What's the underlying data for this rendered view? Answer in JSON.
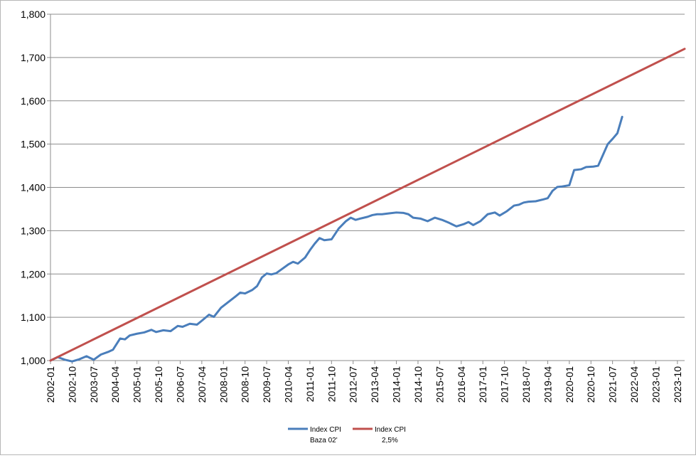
{
  "chart_data": {
    "type": "line",
    "title": "",
    "xlabel": "",
    "ylabel": "",
    "ylim": [
      1000,
      1800
    ],
    "y_ticks": [
      "1,000",
      "1,100",
      "1,200",
      "1,300",
      "1,400",
      "1,500",
      "1,600",
      "1,700",
      "1,800"
    ],
    "x_range": [
      "2002-01",
      "2024-01"
    ],
    "x_ticks": [
      "2002-01",
      "2002-10",
      "2003-07",
      "2004-04",
      "2005-01",
      "2005-10",
      "2006-07",
      "2007-04",
      "2008-01",
      "2008-10",
      "2009-07",
      "2010-04",
      "2011-01",
      "2011-10",
      "2012-07",
      "2013-04",
      "2014-01",
      "2014-10",
      "2015-07",
      "2016-04",
      "2017-01",
      "2017-10",
      "2018-07",
      "2019-04",
      "2020-01",
      "2020-10",
      "2021-07",
      "2022-04",
      "2023-01",
      "2023-10"
    ],
    "grid": "horizontal",
    "legend_position": "bottom",
    "series": [
      {
        "name": "Index CPI Baza 02'",
        "color": "#4a7ebb",
        "points": [
          [
            "2002-01",
            1000
          ],
          [
            "2002-04",
            1008
          ],
          [
            "2002-07",
            1002
          ],
          [
            "2002-10",
            998
          ],
          [
            "2003-01",
            1003
          ],
          [
            "2003-04",
            1010
          ],
          [
            "2003-07",
            1002
          ],
          [
            "2003-10",
            1014
          ],
          [
            "2004-01",
            1020
          ],
          [
            "2004-03",
            1025
          ],
          [
            "2004-06",
            1051
          ],
          [
            "2004-08",
            1049
          ],
          [
            "2004-10",
            1058
          ],
          [
            "2005-01",
            1062
          ],
          [
            "2005-04",
            1065
          ],
          [
            "2005-07",
            1071
          ],
          [
            "2005-09",
            1066
          ],
          [
            "2005-12",
            1070
          ],
          [
            "2006-03",
            1068
          ],
          [
            "2006-06",
            1080
          ],
          [
            "2006-08",
            1078
          ],
          [
            "2006-11",
            1085
          ],
          [
            "2007-02",
            1083
          ],
          [
            "2007-04",
            1092
          ],
          [
            "2007-07",
            1106
          ],
          [
            "2007-09",
            1101
          ],
          [
            "2007-12",
            1122
          ],
          [
            "2008-03",
            1135
          ],
          [
            "2008-06",
            1148
          ],
          [
            "2008-08",
            1157
          ],
          [
            "2008-10",
            1155
          ],
          [
            "2009-01",
            1163
          ],
          [
            "2009-03",
            1172
          ],
          [
            "2009-05",
            1192
          ],
          [
            "2009-07",
            1201
          ],
          [
            "2009-09",
            1199
          ],
          [
            "2009-11",
            1202
          ],
          [
            "2010-01",
            1210
          ],
          [
            "2010-04",
            1222
          ],
          [
            "2010-06",
            1228
          ],
          [
            "2010-08",
            1224
          ],
          [
            "2010-11",
            1238
          ],
          [
            "2011-01",
            1255
          ],
          [
            "2011-03",
            1270
          ],
          [
            "2011-05",
            1283
          ],
          [
            "2011-07",
            1278
          ],
          [
            "2011-10",
            1280
          ],
          [
            "2012-01",
            1305
          ],
          [
            "2012-04",
            1322
          ],
          [
            "2012-06",
            1330
          ],
          [
            "2012-08",
            1325
          ],
          [
            "2012-10",
            1328
          ],
          [
            "2013-01",
            1332
          ],
          [
            "2013-03",
            1336
          ],
          [
            "2013-05",
            1338
          ],
          [
            "2013-07",
            1338
          ],
          [
            "2013-10",
            1340
          ],
          [
            "2014-01",
            1342
          ],
          [
            "2014-04",
            1341
          ],
          [
            "2014-06",
            1338
          ],
          [
            "2014-08",
            1330
          ],
          [
            "2014-11",
            1328
          ],
          [
            "2015-02",
            1322
          ],
          [
            "2015-05",
            1330
          ],
          [
            "2015-08",
            1325
          ],
          [
            "2015-11",
            1318
          ],
          [
            "2016-02",
            1310
          ],
          [
            "2016-05",
            1315
          ],
          [
            "2016-07",
            1320
          ],
          [
            "2016-09",
            1313
          ],
          [
            "2016-12",
            1322
          ],
          [
            "2017-03",
            1338
          ],
          [
            "2017-06",
            1342
          ],
          [
            "2017-08",
            1335
          ],
          [
            "2017-11",
            1345
          ],
          [
            "2018-02",
            1358
          ],
          [
            "2018-04",
            1360
          ],
          [
            "2018-06",
            1365
          ],
          [
            "2018-08",
            1367
          ],
          [
            "2018-11",
            1368
          ],
          [
            "2019-02",
            1372
          ],
          [
            "2019-04",
            1375
          ],
          [
            "2019-06",
            1392
          ],
          [
            "2019-08",
            1401
          ],
          [
            "2019-10",
            1402
          ],
          [
            "2020-01",
            1405
          ],
          [
            "2020-03",
            1440
          ],
          [
            "2020-06",
            1442
          ],
          [
            "2020-08",
            1447
          ],
          [
            "2020-11",
            1448
          ],
          [
            "2021-01",
            1450
          ],
          [
            "2021-03",
            1475
          ],
          [
            "2021-05",
            1500
          ],
          [
            "2021-07",
            1512
          ],
          [
            "2021-09",
            1525
          ],
          [
            "2021-11",
            1563
          ]
        ]
      },
      {
        "name": "Index CPI 2,5%",
        "color": "#c0504d",
        "points": [
          [
            "2002-01",
            1000
          ],
          [
            "2024-01",
            1720
          ]
        ],
        "growth": "2,5%"
      }
    ]
  },
  "legend": {
    "items": [
      {
        "line1": "Index CPI",
        "line2": "Baza 02'",
        "color": "#4a7ebb"
      },
      {
        "line1": "Index CPI",
        "line2": "2,5%",
        "color": "#c0504d"
      }
    ]
  }
}
